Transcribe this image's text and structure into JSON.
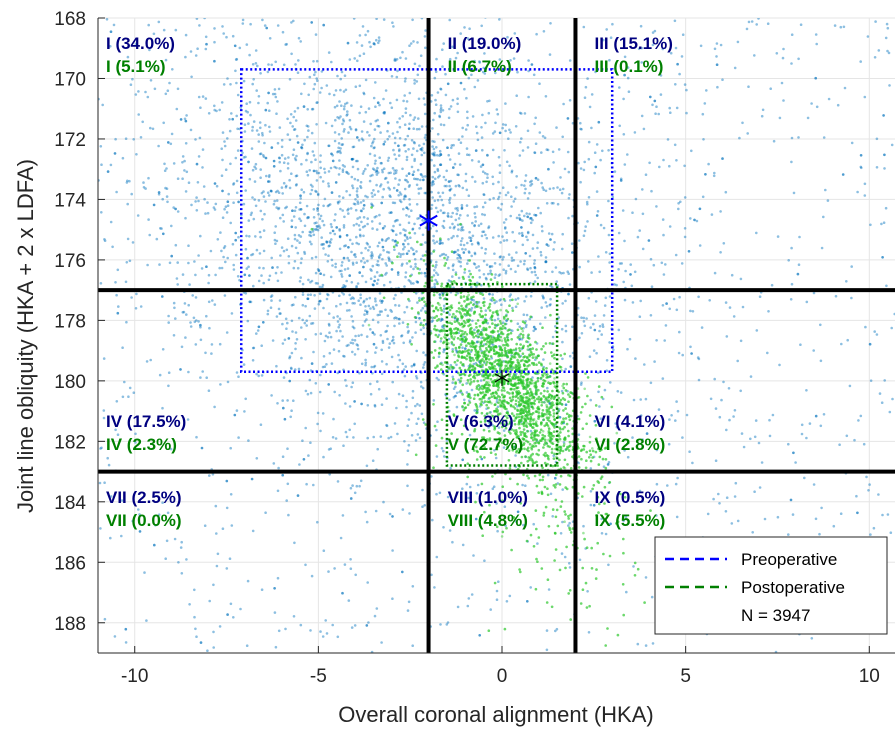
{
  "chart_data": {
    "type": "scatter",
    "xlabel": "Overall coronal alignment (HKA)",
    "ylabel": "Joint line obliquity (HKA + 2 x LDFA)",
    "xlim": [
      -11,
      10.7
    ],
    "ylim": [
      168,
      189
    ],
    "y_reversed": true,
    "grid": true,
    "x_ticks": [
      -10,
      -5,
      0,
      5,
      10
    ],
    "y_ticks": [
      168,
      170,
      172,
      174,
      176,
      178,
      180,
      182,
      184,
      186,
      188
    ],
    "boundaries": {
      "x": [
        -2,
        2
      ],
      "y": [
        177,
        183
      ]
    },
    "colors": {
      "preop": "#0072BD",
      "postop": "#2DC82D",
      "preop_text": "#000080",
      "postop_text": "#008000",
      "preop_box": "#0000FF",
      "postop_box": "#007F00",
      "grid": "#E5E5E5"
    },
    "series": [
      {
        "name": "Preoperative",
        "color": "#0072BD",
        "count": 3947,
        "distribution": "bimodal-cloud",
        "center": [
          -2,
          174.7
        ],
        "sd": [
          3.6,
          3.6
        ]
      },
      {
        "name": "Postoperative",
        "color": "#2DC82D",
        "count": 3947,
        "distribution": "correlated-cloud",
        "center": [
          0,
          179.9
        ],
        "sd": [
          1.1,
          1.6
        ]
      }
    ],
    "means": [
      {
        "series": "Preoperative",
        "x": -2,
        "y": 174.7,
        "marker": "asterisk",
        "color": "#0000FF"
      },
      {
        "series": "Postoperative",
        "x": 0,
        "y": 179.9,
        "marker": "asterisk",
        "color": "#000000"
      }
    ],
    "boxes": [
      {
        "series": "Preoperative",
        "x0": -7.1,
        "x1": 3.0,
        "y0": 169.7,
        "y1": 179.7,
        "color": "#0000FF"
      },
      {
        "series": "Postoperative",
        "x0": -1.5,
        "x1": 1.5,
        "y0": 176.8,
        "y1": 182.8,
        "color": "#007F00"
      }
    ],
    "regions": [
      {
        "id": "I",
        "pre": "I (34.0%)",
        "post": "I (5.1%)",
        "x": -11,
        "y": 169
      },
      {
        "id": "II",
        "pre": "II (19.0%)",
        "post": "II (6.7%)",
        "x": -1.7,
        "y": 169
      },
      {
        "id": "III",
        "pre": "III (15.1%)",
        "post": "III (0.1%)",
        "x": 2.3,
        "y": 169
      },
      {
        "id": "IV",
        "pre": "IV (17.5%)",
        "post": "IV (2.3%)",
        "x": -11,
        "y": 181.5
      },
      {
        "id": "V",
        "pre": "V (6.3%)",
        "post": "V (72.7%)",
        "x": -1.7,
        "y": 181.5
      },
      {
        "id": "VI",
        "pre": "VI (4.1%)",
        "post": "VI (2.8%)",
        "x": 2.3,
        "y": 181.5
      },
      {
        "id": "VII",
        "pre": "VII (2.5%)",
        "post": "VII (0.0%)",
        "x": -11,
        "y": 184
      },
      {
        "id": "VIII",
        "pre": "VIII (1.0%)",
        "post": "VIII (4.8%)",
        "x": -1.7,
        "y": 184
      },
      {
        "id": "IX",
        "pre": "IX (0.5%)",
        "post": "IX (5.5%)",
        "x": 2.3,
        "y": 184
      }
    ],
    "legend": {
      "placement": "bottom-right",
      "entries": [
        {
          "label": "Preoperative",
          "color": "#0000FF",
          "style": "dashed"
        },
        {
          "label": "Postoperative",
          "color": "#007F00",
          "style": "dashed"
        }
      ],
      "note": "N = 3947"
    }
  }
}
